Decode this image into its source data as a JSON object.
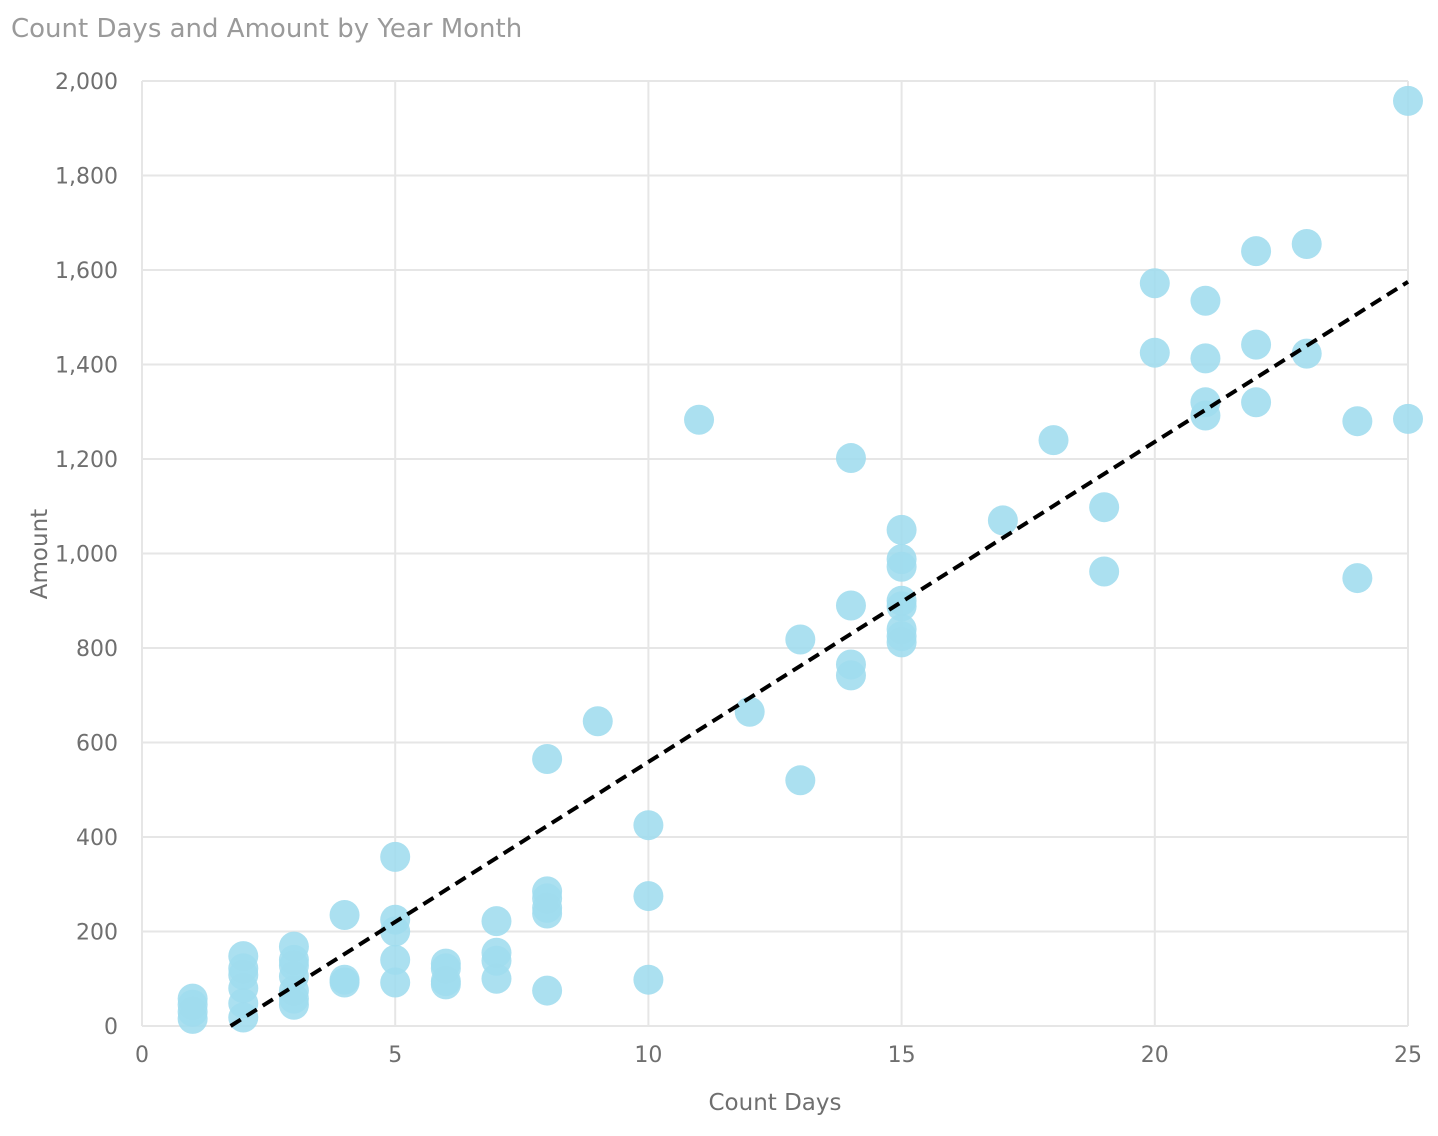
{
  "chart_data": {
    "type": "scatter",
    "title": "Count Days and Amount by Year Month",
    "xlabel": "Count Days",
    "ylabel": "Amount",
    "xlim": [
      0,
      25
    ],
    "ylim": [
      0,
      2000
    ],
    "xticks": [
      0,
      5,
      10,
      15,
      20,
      25
    ],
    "xtick_labels": [
      "0",
      "5",
      "10",
      "15",
      "20",
      "25"
    ],
    "yticks": [
      0,
      200,
      400,
      600,
      800,
      1000,
      1200,
      1400,
      1600,
      1800,
      2000
    ],
    "ytick_labels": [
      "0",
      "200",
      "400",
      "600",
      "800",
      "1,000",
      "1,200",
      "1,400",
      "1,600",
      "1,800",
      "2,000"
    ],
    "grid": true,
    "point_color": "#9fdcee",
    "trendline": {
      "style": "dashed",
      "color": "#000000",
      "points": [
        [
          1.75,
          0
        ],
        [
          25,
          1575
        ]
      ]
    },
    "points": [
      {
        "x": 1,
        "y": 58
      },
      {
        "x": 1,
        "y": 45
      },
      {
        "x": 1,
        "y": 30
      },
      {
        "x": 1,
        "y": 15
      },
      {
        "x": 2,
        "y": 148
      },
      {
        "x": 2,
        "y": 122
      },
      {
        "x": 2,
        "y": 108
      },
      {
        "x": 2,
        "y": 80
      },
      {
        "x": 2,
        "y": 48
      },
      {
        "x": 2,
        "y": 18
      },
      {
        "x": 3,
        "y": 168
      },
      {
        "x": 3,
        "y": 140
      },
      {
        "x": 3,
        "y": 128
      },
      {
        "x": 3,
        "y": 105
      },
      {
        "x": 3,
        "y": 75
      },
      {
        "x": 3,
        "y": 58
      },
      {
        "x": 3,
        "y": 45
      },
      {
        "x": 4,
        "y": 235
      },
      {
        "x": 4,
        "y": 98
      },
      {
        "x": 4,
        "y": 92
      },
      {
        "x": 5,
        "y": 358
      },
      {
        "x": 5,
        "y": 225
      },
      {
        "x": 5,
        "y": 200
      },
      {
        "x": 5,
        "y": 140
      },
      {
        "x": 5,
        "y": 92
      },
      {
        "x": 6,
        "y": 132
      },
      {
        "x": 6,
        "y": 122
      },
      {
        "x": 6,
        "y": 95
      },
      {
        "x": 6,
        "y": 88
      },
      {
        "x": 7,
        "y": 222
      },
      {
        "x": 7,
        "y": 155
      },
      {
        "x": 7,
        "y": 138
      },
      {
        "x": 7,
        "y": 100
      },
      {
        "x": 8,
        "y": 565
      },
      {
        "x": 8,
        "y": 285
      },
      {
        "x": 8,
        "y": 270
      },
      {
        "x": 8,
        "y": 250
      },
      {
        "x": 8,
        "y": 238
      },
      {
        "x": 8,
        "y": 75
      },
      {
        "x": 9,
        "y": 645
      },
      {
        "x": 10,
        "y": 425
      },
      {
        "x": 10,
        "y": 275
      },
      {
        "x": 10,
        "y": 98
      },
      {
        "x": 11,
        "y": 1283
      },
      {
        "x": 12,
        "y": 665
      },
      {
        "x": 13,
        "y": 818
      },
      {
        "x": 13,
        "y": 520
      },
      {
        "x": 14,
        "y": 1202
      },
      {
        "x": 14,
        "y": 890
      },
      {
        "x": 14,
        "y": 765
      },
      {
        "x": 14,
        "y": 742
      },
      {
        "x": 15,
        "y": 1050
      },
      {
        "x": 15,
        "y": 988
      },
      {
        "x": 15,
        "y": 972
      },
      {
        "x": 15,
        "y": 900
      },
      {
        "x": 15,
        "y": 888
      },
      {
        "x": 15,
        "y": 840
      },
      {
        "x": 15,
        "y": 825
      },
      {
        "x": 15,
        "y": 812
      },
      {
        "x": 17,
        "y": 1070
      },
      {
        "x": 18,
        "y": 1240
      },
      {
        "x": 19,
        "y": 1098
      },
      {
        "x": 19,
        "y": 962
      },
      {
        "x": 20,
        "y": 1572
      },
      {
        "x": 20,
        "y": 1425
      },
      {
        "x": 21,
        "y": 1535
      },
      {
        "x": 21,
        "y": 1413
      },
      {
        "x": 21,
        "y": 1320
      },
      {
        "x": 21,
        "y": 1292
      },
      {
        "x": 22,
        "y": 1640
      },
      {
        "x": 22,
        "y": 1442
      },
      {
        "x": 22,
        "y": 1320
      },
      {
        "x": 23,
        "y": 1655
      },
      {
        "x": 23,
        "y": 1423
      },
      {
        "x": 24,
        "y": 1280
      },
      {
        "x": 24,
        "y": 948
      },
      {
        "x": 25,
        "y": 1958
      },
      {
        "x": 25,
        "y": 1285
      }
    ]
  }
}
